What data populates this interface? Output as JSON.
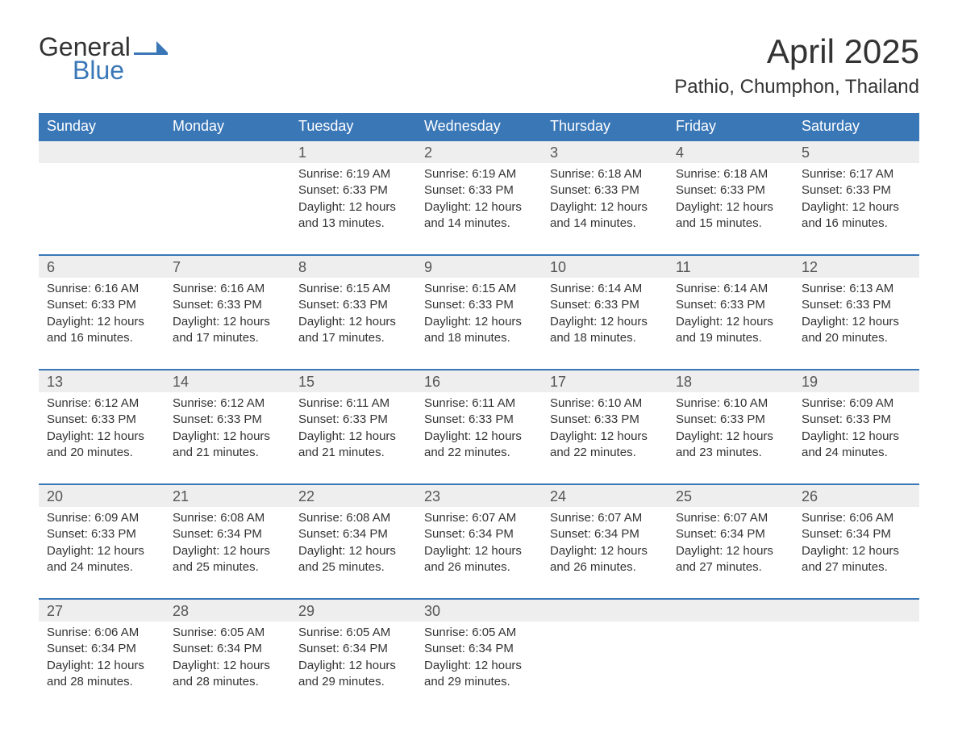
{
  "logo": {
    "text1": "General",
    "text2": "Blue"
  },
  "title": "April 2025",
  "location": "Pathio, Chumphon, Thailand",
  "colors": {
    "header_bg": "#3a77b7",
    "header_text": "#ffffff",
    "daynum_bg": "#eeeeee",
    "daynum_text": "#555555",
    "body_text": "#333333",
    "row_divider": "#3a77b7",
    "page_bg": "#ffffff"
  },
  "typography": {
    "month_title_fontsize": 42,
    "location_fontsize": 24,
    "day_header_fontsize": 18,
    "daynum_fontsize": 18,
    "detail_fontsize": 15,
    "logo_fontsize": 32
  },
  "day_headers": [
    "Sunday",
    "Monday",
    "Tuesday",
    "Wednesday",
    "Thursday",
    "Friday",
    "Saturday"
  ],
  "weeks": [
    [
      null,
      null,
      {
        "n": "1",
        "sunrise": "6:19 AM",
        "sunset": "6:33 PM",
        "daylight": "12 hours and 13 minutes."
      },
      {
        "n": "2",
        "sunrise": "6:19 AM",
        "sunset": "6:33 PM",
        "daylight": "12 hours and 14 minutes."
      },
      {
        "n": "3",
        "sunrise": "6:18 AM",
        "sunset": "6:33 PM",
        "daylight": "12 hours and 14 minutes."
      },
      {
        "n": "4",
        "sunrise": "6:18 AM",
        "sunset": "6:33 PM",
        "daylight": "12 hours and 15 minutes."
      },
      {
        "n": "5",
        "sunrise": "6:17 AM",
        "sunset": "6:33 PM",
        "daylight": "12 hours and 16 minutes."
      }
    ],
    [
      {
        "n": "6",
        "sunrise": "6:16 AM",
        "sunset": "6:33 PM",
        "daylight": "12 hours and 16 minutes."
      },
      {
        "n": "7",
        "sunrise": "6:16 AM",
        "sunset": "6:33 PM",
        "daylight": "12 hours and 17 minutes."
      },
      {
        "n": "8",
        "sunrise": "6:15 AM",
        "sunset": "6:33 PM",
        "daylight": "12 hours and 17 minutes."
      },
      {
        "n": "9",
        "sunrise": "6:15 AM",
        "sunset": "6:33 PM",
        "daylight": "12 hours and 18 minutes."
      },
      {
        "n": "10",
        "sunrise": "6:14 AM",
        "sunset": "6:33 PM",
        "daylight": "12 hours and 18 minutes."
      },
      {
        "n": "11",
        "sunrise": "6:14 AM",
        "sunset": "6:33 PM",
        "daylight": "12 hours and 19 minutes."
      },
      {
        "n": "12",
        "sunrise": "6:13 AM",
        "sunset": "6:33 PM",
        "daylight": "12 hours and 20 minutes."
      }
    ],
    [
      {
        "n": "13",
        "sunrise": "6:12 AM",
        "sunset": "6:33 PM",
        "daylight": "12 hours and 20 minutes."
      },
      {
        "n": "14",
        "sunrise": "6:12 AM",
        "sunset": "6:33 PM",
        "daylight": "12 hours and 21 minutes."
      },
      {
        "n": "15",
        "sunrise": "6:11 AM",
        "sunset": "6:33 PM",
        "daylight": "12 hours and 21 minutes."
      },
      {
        "n": "16",
        "sunrise": "6:11 AM",
        "sunset": "6:33 PM",
        "daylight": "12 hours and 22 minutes."
      },
      {
        "n": "17",
        "sunrise": "6:10 AM",
        "sunset": "6:33 PM",
        "daylight": "12 hours and 22 minutes."
      },
      {
        "n": "18",
        "sunrise": "6:10 AM",
        "sunset": "6:33 PM",
        "daylight": "12 hours and 23 minutes."
      },
      {
        "n": "19",
        "sunrise": "6:09 AM",
        "sunset": "6:33 PM",
        "daylight": "12 hours and 24 minutes."
      }
    ],
    [
      {
        "n": "20",
        "sunrise": "6:09 AM",
        "sunset": "6:33 PM",
        "daylight": "12 hours and 24 minutes."
      },
      {
        "n": "21",
        "sunrise": "6:08 AM",
        "sunset": "6:34 PM",
        "daylight": "12 hours and 25 minutes."
      },
      {
        "n": "22",
        "sunrise": "6:08 AM",
        "sunset": "6:34 PM",
        "daylight": "12 hours and 25 minutes."
      },
      {
        "n": "23",
        "sunrise": "6:07 AM",
        "sunset": "6:34 PM",
        "daylight": "12 hours and 26 minutes."
      },
      {
        "n": "24",
        "sunrise": "6:07 AM",
        "sunset": "6:34 PM",
        "daylight": "12 hours and 26 minutes."
      },
      {
        "n": "25",
        "sunrise": "6:07 AM",
        "sunset": "6:34 PM",
        "daylight": "12 hours and 27 minutes."
      },
      {
        "n": "26",
        "sunrise": "6:06 AM",
        "sunset": "6:34 PM",
        "daylight": "12 hours and 27 minutes."
      }
    ],
    [
      {
        "n": "27",
        "sunrise": "6:06 AM",
        "sunset": "6:34 PM",
        "daylight": "12 hours and 28 minutes."
      },
      {
        "n": "28",
        "sunrise": "6:05 AM",
        "sunset": "6:34 PM",
        "daylight": "12 hours and 28 minutes."
      },
      {
        "n": "29",
        "sunrise": "6:05 AM",
        "sunset": "6:34 PM",
        "daylight": "12 hours and 29 minutes."
      },
      {
        "n": "30",
        "sunrise": "6:05 AM",
        "sunset": "6:34 PM",
        "daylight": "12 hours and 29 minutes."
      },
      null,
      null,
      null
    ]
  ],
  "labels": {
    "sunrise": "Sunrise: ",
    "sunset": "Sunset: ",
    "daylight": "Daylight: "
  }
}
